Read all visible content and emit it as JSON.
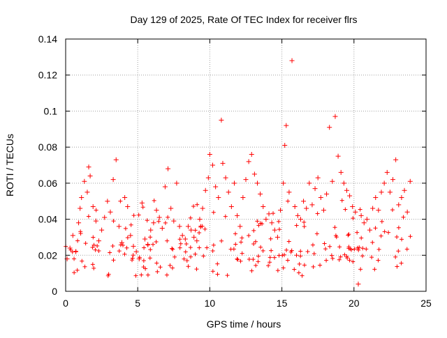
{
  "chart_data": {
    "type": "scatter",
    "title": "Day 129 of 2025, Rate Of TEC Index for receiver flrs",
    "xlabel": "GPS time / hours",
    "ylabel": "ROTI / TECUs",
    "xlim": [
      0,
      25
    ],
    "ylim": [
      0,
      0.14
    ],
    "xticks": [
      0,
      5,
      10,
      15,
      20,
      25
    ],
    "yticks": [
      0,
      0.02,
      0.04,
      0.06,
      0.08,
      0.1,
      0.12,
      0.14
    ],
    "xtick_labels": [
      "0",
      "5",
      "10",
      "15",
      "20",
      "25"
    ],
    "ytick_labels": [
      "0",
      "0.02",
      "0.04",
      "0.06",
      "0.08",
      "0.1",
      "0.12",
      "0.14"
    ],
    "grid": true,
    "marker": "+",
    "color": "#ff0000",
    "series": [
      {
        "name": "ROTI",
        "points": [
          [
            0.1,
            0.018
          ],
          [
            0.3,
            0.024
          ],
          [
            0.5,
            0.031
          ],
          [
            0.7,
            0.022
          ],
          [
            0.9,
            0.038
          ],
          [
            1.0,
            0.046
          ],
          [
            1.1,
            0.052
          ],
          [
            1.3,
            0.061
          ],
          [
            1.5,
            0.055
          ],
          [
            1.6,
            0.069
          ],
          [
            1.7,
            0.064
          ],
          [
            1.9,
            0.047
          ],
          [
            2.1,
            0.039
          ],
          [
            2.3,
            0.028
          ],
          [
            2.5,
            0.034
          ],
          [
            2.7,
            0.041
          ],
          [
            2.9,
            0.05
          ],
          [
            3.1,
            0.044
          ],
          [
            3.3,
            0.062
          ],
          [
            3.5,
            0.073
          ],
          [
            3.7,
            0.036
          ],
          [
            3.9,
            0.027
          ],
          [
            4.1,
            0.052
          ],
          [
            4.3,
            0.047
          ],
          [
            4.5,
            0.031
          ],
          [
            4.7,
            0.025
          ],
          [
            4.9,
            0.022
          ],
          [
            5.1,
            0.018
          ],
          [
            5.3,
            0.049
          ],
          [
            5.5,
            0.029
          ],
          [
            5.7,
            0.026
          ],
          [
            5.9,
            0.034
          ],
          [
            6.1,
            0.038
          ],
          [
            6.3,
            0.045
          ],
          [
            6.5,
            0.041
          ],
          [
            6.7,
            0.035
          ],
          [
            6.9,
            0.058
          ],
          [
            7.1,
            0.068
          ],
          [
            7.3,
            0.046
          ],
          [
            7.5,
            0.039
          ],
          [
            7.7,
            0.06
          ],
          [
            7.9,
            0.036
          ],
          [
            8.1,
            0.031
          ],
          [
            8.3,
            0.029
          ],
          [
            8.5,
            0.036
          ],
          [
            8.7,
            0.034
          ],
          [
            8.9,
            0.03
          ],
          [
            9.1,
            0.028
          ],
          [
            9.3,
            0.04
          ],
          [
            9.5,
            0.046
          ],
          [
            9.7,
            0.056
          ],
          [
            9.9,
            0.063
          ],
          [
            10.0,
            0.076
          ],
          [
            10.2,
            0.07
          ],
          [
            10.4,
            0.058
          ],
          [
            10.6,
            0.052
          ],
          [
            10.8,
            0.095
          ],
          [
            10.9,
            0.071
          ],
          [
            11.1,
            0.063
          ],
          [
            11.3,
            0.055
          ],
          [
            11.5,
            0.047
          ],
          [
            11.7,
            0.06
          ],
          [
            11.9,
            0.042
          ],
          [
            12.1,
            0.036
          ],
          [
            12.3,
            0.052
          ],
          [
            12.5,
            0.062
          ],
          [
            12.7,
            0.072
          ],
          [
            12.9,
            0.076
          ],
          [
            13.1,
            0.065
          ],
          [
            13.3,
            0.06
          ],
          [
            13.5,
            0.054
          ],
          [
            13.7,
            0.047
          ],
          [
            13.9,
            0.04
          ],
          [
            14.1,
            0.043
          ],
          [
            14.3,
            0.038
          ],
          [
            14.5,
            0.034
          ],
          [
            14.7,
            0.03
          ],
          [
            14.9,
            0.045
          ],
          [
            15.1,
            0.06
          ],
          [
            15.2,
            0.081
          ],
          [
            15.3,
            0.092
          ],
          [
            15.5,
            0.055
          ],
          [
            15.7,
            0.128
          ],
          [
            15.9,
            0.047
          ],
          [
            16.1,
            0.042
          ],
          [
            16.3,
            0.04
          ],
          [
            16.5,
            0.05
          ],
          [
            16.7,
            0.046
          ],
          [
            16.9,
            0.06
          ],
          [
            17.1,
            0.048
          ],
          [
            17.3,
            0.057
          ],
          [
            17.5,
            0.063
          ],
          [
            17.7,
            0.052
          ],
          [
            17.9,
            0.045
          ],
          [
            18.1,
            0.054
          ],
          [
            18.3,
            0.091
          ],
          [
            18.5,
            0.061
          ],
          [
            18.7,
            0.097
          ],
          [
            18.9,
            0.075
          ],
          [
            19.1,
            0.066
          ],
          [
            19.3,
            0.06
          ],
          [
            19.5,
            0.056
          ],
          [
            19.7,
            0.053
          ],
          [
            19.9,
            0.047
          ],
          [
            20.1,
            0.044
          ],
          [
            20.3,
            0.004
          ],
          [
            20.5,
            0.042
          ],
          [
            20.7,
            0.038
          ],
          [
            20.9,
            0.04
          ],
          [
            21.1,
            0.034
          ],
          [
            21.3,
            0.046
          ],
          [
            21.5,
            0.052
          ],
          [
            21.7,
            0.045
          ],
          [
            21.9,
            0.055
          ],
          [
            22.1,
            0.06
          ],
          [
            22.3,
            0.066
          ],
          [
            22.5,
            0.055
          ],
          [
            22.7,
            0.062
          ],
          [
            22.9,
            0.073
          ],
          [
            23.1,
            0.048
          ],
          [
            23.3,
            0.052
          ],
          [
            23.5,
            0.056
          ],
          [
            23.7,
            0.044
          ],
          [
            23.9,
            0.061
          ]
        ]
      }
    ]
  }
}
